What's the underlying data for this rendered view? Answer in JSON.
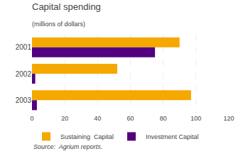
{
  "chart_data": {
    "type": "bar",
    "orientation": "horizontal",
    "title": "Capital spending",
    "subtitle": "(millions of dollars)",
    "categories": [
      "2001",
      "2002",
      "2003"
    ],
    "series": [
      {
        "name": "Sustaining  Capital",
        "color": "#F5A800",
        "values": [
          90,
          52,
          97
        ]
      },
      {
        "name": "Investment Capital",
        "color": "#520080",
        "values": [
          75,
          2,
          3
        ]
      }
    ],
    "xlim": [
      0,
      120
    ],
    "xticks": [
      0,
      20,
      40,
      60,
      80,
      100,
      120
    ],
    "grid": true,
    "legend": "bottom",
    "source": "Source:  Agrium reports."
  }
}
